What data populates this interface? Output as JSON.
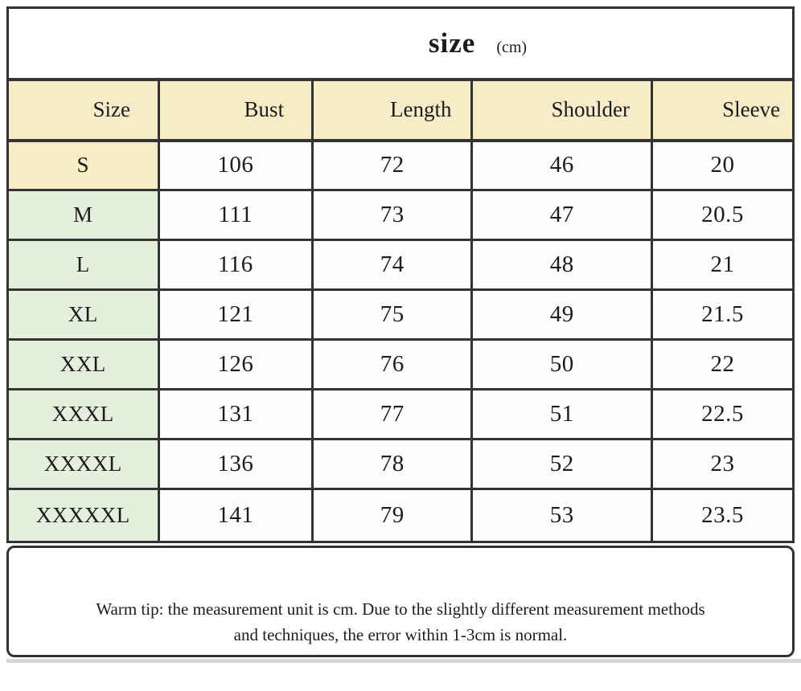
{
  "title": {
    "text": "size",
    "unit": "(cm)"
  },
  "table": {
    "headers": [
      "Size",
      "Bust",
      "Length",
      "Shoulder",
      "Sleeve"
    ],
    "rows": [
      {
        "size": "S",
        "bust": "106",
        "length": "72",
        "shoulder": "46",
        "sleeve": "20"
      },
      {
        "size": "M",
        "bust": "111",
        "length": "73",
        "shoulder": "47",
        "sleeve": "20.5"
      },
      {
        "size": "L",
        "bust": "116",
        "length": "74",
        "shoulder": "48",
        "sleeve": "21"
      },
      {
        "size": "XL",
        "bust": "121",
        "length": "75",
        "shoulder": "49",
        "sleeve": "21.5"
      },
      {
        "size": "XXL",
        "bust": "126",
        "length": "76",
        "shoulder": "50",
        "sleeve": "22"
      },
      {
        "size": "XXXL",
        "bust": "131",
        "length": "77",
        "shoulder": "51",
        "sleeve": "22.5"
      },
      {
        "size": "XXXXL",
        "bust": "136",
        "length": "78",
        "shoulder": "52",
        "sleeve": "23"
      },
      {
        "size": "XXXXXL",
        "bust": "141",
        "length": "79",
        "shoulder": "53",
        "sleeve": "23.5"
      }
    ]
  },
  "footer": {
    "line1": "Warm tip: the measurement unit is cm. Due to the slightly different measurement methods",
    "line2": "and techniques, the error within 1-3cm is normal."
  },
  "colors": {
    "header_bg": "#f7ecc8",
    "size_s_bg": "#f8edc4",
    "size_green_bg": "#e5efdd",
    "border": "#333333",
    "cell_bg": "#fdfdfd"
  }
}
